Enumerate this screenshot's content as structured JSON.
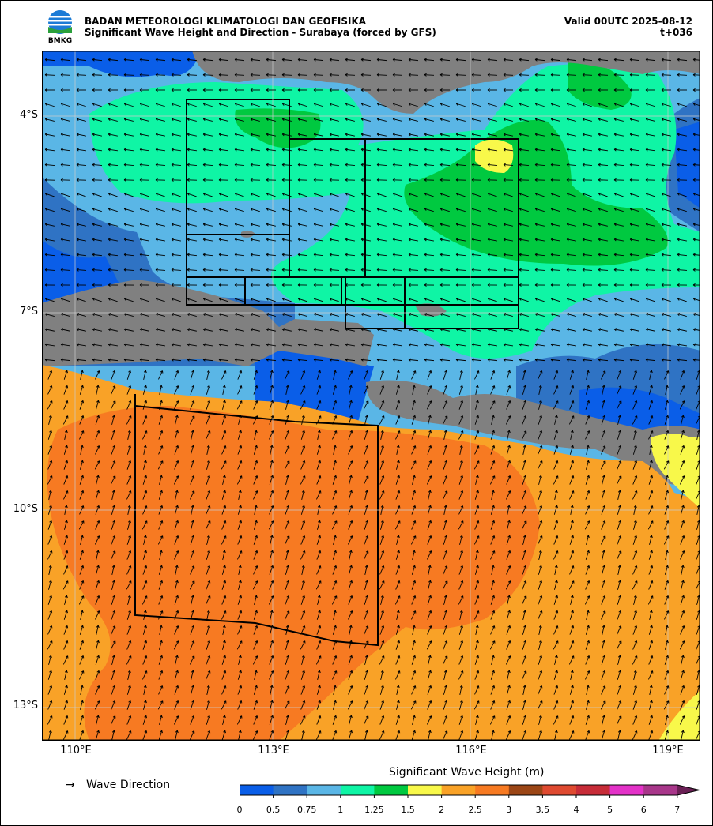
{
  "header": {
    "agency": "BADAN METEOROLOGI KLIMATOLOGI DAN GEOFISIKA",
    "subtitle": "Significant Wave Height and Direction - Surabaya (forced by GFS)",
    "valid": "Valid 00UTC 2025-08-12",
    "lead": "t+036",
    "logo_text": "BMKG"
  },
  "axes": {
    "lat_labels": [
      "4°S",
      "7°S",
      "10°S",
      "13°S"
    ],
    "lon_labels": [
      "110°E",
      "113°E",
      "116°E",
      "119°E"
    ]
  },
  "legend": {
    "arrow_symbol": "→",
    "arrow_label": "Wave Direction",
    "colorbar_title": "Significant Wave Height (m)",
    "ticks": [
      "0",
      "0.5",
      "0.75",
      "1",
      "1.25",
      "1.5",
      "2",
      "2.5",
      "3",
      "3.5",
      "4",
      "5",
      "6",
      "7"
    ],
    "colors": [
      "#0a5ee8",
      "#2f73c4",
      "#5ab6e6",
      "#0ff5a5",
      "#00c940",
      "#f8f84a",
      "#f9a227",
      "#f77a22",
      "#9b4616",
      "#df4a30",
      "#c72c38",
      "#e332c8",
      "#a8368a",
      "#6a2055"
    ]
  },
  "palette": {
    "land": "#808080",
    "grid": "#cccccc"
  }
}
